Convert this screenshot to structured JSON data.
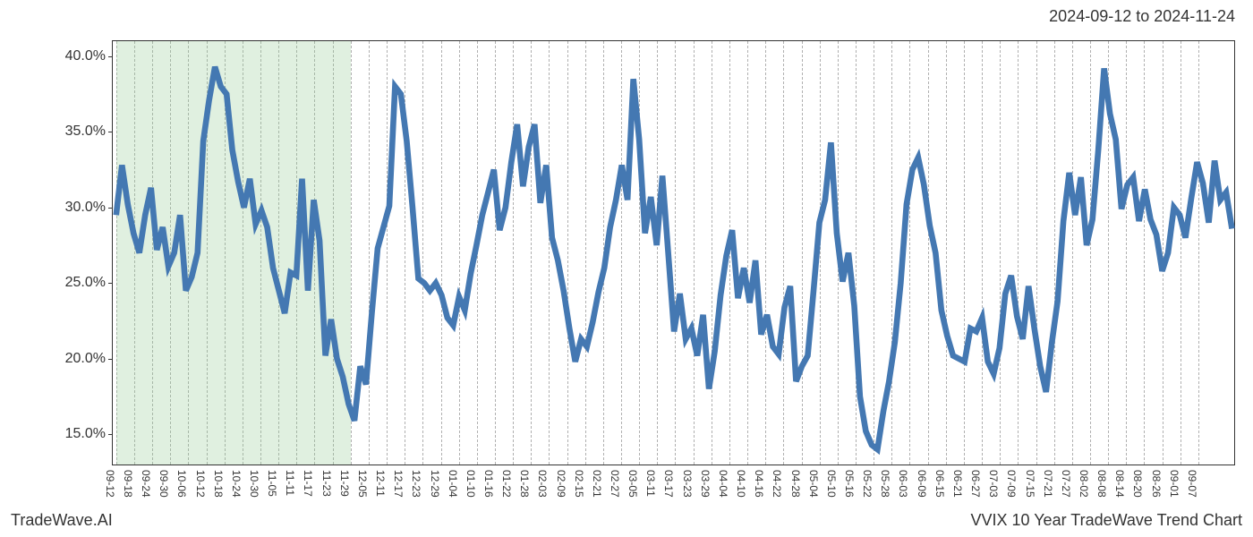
{
  "header": {
    "date_range": "2024-09-12 to 2024-11-24"
  },
  "footer": {
    "source": "TradeWave.AI",
    "title": "VVIX 10 Year TradeWave Trend Chart"
  },
  "chart": {
    "type": "line",
    "background_color": "#ffffff",
    "grid_color": "#b0b0b0",
    "grid_style": "dashed",
    "border_color": "#333333",
    "line_color": "#4478b2",
    "line_width": 2.2,
    "highlight": {
      "start_index": 0,
      "end_index": 13,
      "fill_color": "rgba(144,200,144,0.28)"
    },
    "ylim": [
      13,
      41
    ],
    "y_ticks": [
      15,
      20,
      25,
      30,
      35,
      40
    ],
    "y_tick_labels": [
      "15.0%",
      "20.0%",
      "25.0%",
      "30.0%",
      "35.0%",
      "40.0%"
    ],
    "y_label_fontsize": 16,
    "x_tick_labels": [
      "09-12",
      "09-18",
      "09-24",
      "09-30",
      "10-06",
      "10-12",
      "10-18",
      "10-24",
      "10-30",
      "11-05",
      "11-11",
      "11-17",
      "11-23",
      "11-29",
      "12-05",
      "12-11",
      "12-17",
      "12-23",
      "12-29",
      "01-04",
      "01-10",
      "01-16",
      "01-22",
      "01-28",
      "02-03",
      "02-09",
      "02-15",
      "02-21",
      "02-27",
      "03-05",
      "03-11",
      "03-17",
      "03-23",
      "03-29",
      "04-04",
      "04-10",
      "04-16",
      "04-22",
      "04-28",
      "05-04",
      "05-10",
      "05-16",
      "05-22",
      "05-28",
      "06-03",
      "06-09",
      "06-15",
      "06-21",
      "06-27",
      "07-03",
      "07-09",
      "07-15",
      "07-21",
      "07-27",
      "08-02",
      "08-08",
      "08-14",
      "08-20",
      "08-26",
      "09-01",
      "09-07"
    ],
    "x_label_fontsize": 12,
    "x_label_rotation": 90,
    "series": {
      "name": "VVIX",
      "values": [
        29.5,
        32.8,
        30.2,
        28.3,
        27,
        29.5,
        31.3,
        27.2,
        28.7,
        26.1,
        27,
        29.5,
        24.5,
        25.4,
        27,
        34.4,
        37.1,
        39.3,
        38,
        37.5,
        33.8,
        31.7,
        30,
        31.9,
        28.9,
        29.8,
        28.7,
        26,
        24.5,
        23,
        25.7,
        25.5,
        31.9,
        24.5,
        30.5,
        27.8,
        20.2,
        22.6,
        20,
        18.8,
        17,
        15.9,
        19.5,
        18.3,
        23,
        27.3,
        28.7,
        30.1,
        38,
        37.5,
        34.4,
        30,
        25.3,
        25,
        24.5,
        25,
        24.2,
        22.7,
        22.2,
        24.1,
        23.2,
        25.6,
        27.5,
        29.5,
        31,
        32.5,
        28.5,
        30,
        33,
        35.5,
        31.4,
        34,
        35.5,
        30.3,
        32.8,
        28,
        26.5,
        24.5,
        22,
        19.8,
        21.3,
        20.8,
        22.4,
        24.4,
        26,
        28.7,
        30.5,
        32.8,
        30.5,
        38.5,
        34.5,
        28.3,
        30.7,
        27.5,
        32.1,
        27,
        21.8,
        24.3,
        21.3,
        22,
        20.2,
        22.9,
        18,
        20.5,
        24.2,
        26.8,
        28.5,
        24,
        26,
        23.7,
        26.5,
        21.6,
        22.9,
        20.8,
        20.3,
        23.4,
        24.8,
        18.5,
        19.5,
        20.2,
        24.5,
        29,
        30.5,
        34.3,
        28.3,
        25.1,
        27,
        23.5,
        17.5,
        15.2,
        14.3,
        14,
        16.5,
        18.5,
        21.1,
        25,
        30.2,
        32.5,
        33.3,
        31.5,
        28.8,
        27,
        23.2,
        21.5,
        20.2,
        20,
        19.8,
        22,
        21.8,
        22.7,
        19.8,
        19,
        20.7,
        24.3,
        25.5,
        22.8,
        21.3,
        24.8,
        22,
        19.5,
        17.8,
        21,
        23.8,
        29.1,
        32.3,
        29.5,
        32,
        27.5,
        29.2,
        33.8,
        39.2,
        36.2,
        34.5,
        29.9,
        31.5,
        32,
        29.1,
        31.2,
        29.2,
        28.2,
        25.8,
        27,
        30,
        29.5,
        28,
        30.6,
        33,
        31.6,
        29,
        33.1,
        30.5,
        31,
        28.6
      ]
    }
  }
}
